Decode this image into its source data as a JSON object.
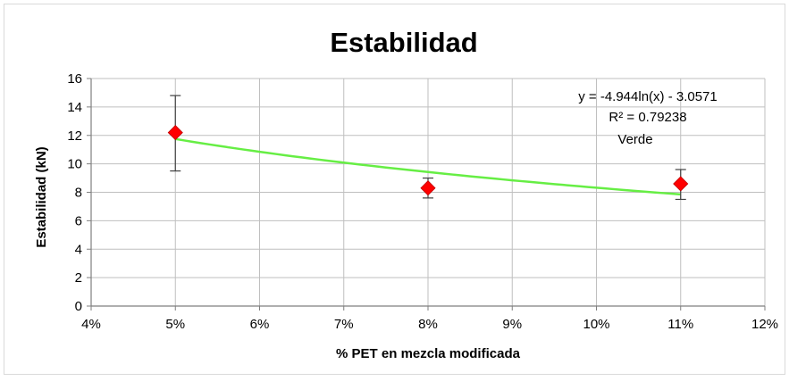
{
  "chart_data": {
    "type": "scatter",
    "title": "Estabilidad",
    "xlabel": "% PET en mezcla modificada",
    "ylabel": "Estabilidad (kN)",
    "xlim": [
      4,
      12
    ],
    "ylim": [
      0,
      16
    ],
    "x_ticks": [
      4,
      5,
      6,
      7,
      8,
      9,
      10,
      11,
      12
    ],
    "x_tick_labels": [
      "4%",
      "5%",
      "6%",
      "7%",
      "8%",
      "9%",
      "10%",
      "11%",
      "12%"
    ],
    "y_ticks": [
      0,
      2,
      4,
      6,
      8,
      10,
      12,
      14,
      16
    ],
    "y_tick_labels": [
      "0",
      "2",
      "4",
      "6",
      "8",
      "10",
      "12",
      "14",
      "16"
    ],
    "grid": true,
    "series": [
      {
        "name": "Verde",
        "marker": "diamond",
        "color": "#ff0000",
        "x": [
          5,
          8,
          11
        ],
        "y": [
          12.2,
          8.3,
          8.6
        ],
        "error_low": [
          9.5,
          7.6,
          7.5
        ],
        "error_high": [
          14.8,
          9.0,
          9.6
        ]
      }
    ],
    "trendline": {
      "type": "logarithmic",
      "color": "#66ee44",
      "x_range": [
        5,
        11
      ],
      "equation": "y = -4.944ln(x) - 3.0571",
      "r_squared": "R² = 0.79238",
      "label": "Verde",
      "y_at_x_start": 11.75,
      "y_at_x_end": 7.85
    }
  }
}
